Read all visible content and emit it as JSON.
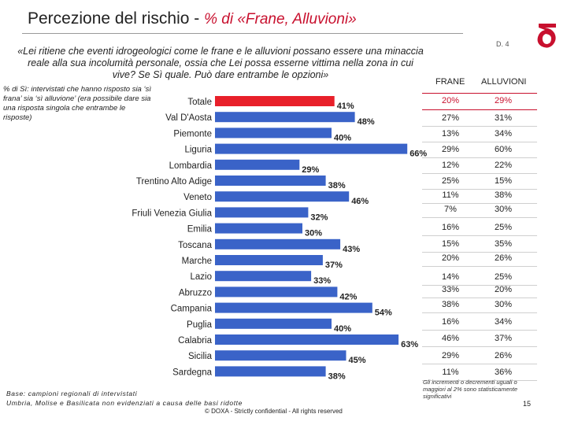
{
  "header": {
    "title": "Percezione del rischio - ",
    "subtitle": "% di «Frane, Alluvioni»",
    "question_code": "D. 4"
  },
  "question": "«Lei ritiene che eventi idrogeologici come le frane e le alluvioni possano essere una minaccia reale alla sua incolumità personale, ossia che Lei possa esserne vittima nella zona in cui vive? Se Sì quale. Può dare entrambe le opzioni»",
  "left_note": "% di Sì: intervistati che hanno risposto sia ‘sì frana’ sia ‘sì alluvione’ (era possibile dare sia una risposta singola che entrambe le risposte)",
  "table": {
    "headers": [
      "FRANE",
      "ALLUVIONI"
    ],
    "rows": [
      {
        "frane": "20%",
        "alluvioni": "29%"
      },
      {
        "frane": "27%",
        "alluvioni": "31%"
      },
      {
        "frane": "13%",
        "alluvioni": "34%"
      },
      {
        "frane": "29%",
        "alluvioni": "60%"
      },
      {
        "frane": "12%",
        "alluvioni": "22%"
      },
      {
        "frane": "25%",
        "alluvioni": "15%"
      },
      {
        "frane": "11%",
        "alluvioni": "38%"
      },
      {
        "frane": "7%",
        "alluvioni": "30%"
      },
      {
        "frane": "16%",
        "alluvioni": "25%"
      },
      {
        "frane": "15%",
        "alluvioni": "35%"
      },
      {
        "frane": "20%",
        "alluvioni": "26%"
      },
      {
        "frane": "14%",
        "alluvioni": "25%"
      },
      {
        "frane": "33%",
        "alluvioni": "20%"
      },
      {
        "frane": "38%",
        "alluvioni": "30%"
      },
      {
        "frane": "16%",
        "alluvioni": "34%"
      },
      {
        "frane": "46%",
        "alluvioni": "37%"
      },
      {
        "frane": "29%",
        "alluvioni": "26%"
      },
      {
        "frane": "11%",
        "alluvioni": "36%"
      }
    ]
  },
  "footnote_right": "Gli incrementi o decrementi uguali o maggiori al 2% sono statisticamente significativi",
  "base_note": "Base: campioni regionali di intervistati\nUmbria, Molise e Basilicata non evidenziati a causa delle basi ridotte",
  "copyright": "© DOXA - Strictly confidential - All rights reserved",
  "page_number": "15",
  "colors": {
    "bar": "#3a63c8",
    "bar_highlight": "#e8202a",
    "accent": "#c8102e"
  },
  "chart_data": {
    "type": "bar",
    "orientation": "horizontal",
    "categories": [
      "Totale",
      "Val D'Aosta",
      "Piemonte",
      "Liguria",
      "Lombardia",
      "Trentino Alto Adige",
      "Veneto",
      "Friuli Venezia Giulia",
      "Emilia",
      "Toscana",
      "Marche",
      "Lazio",
      "Abruzzo",
      "Campania",
      "Puglia",
      "Calabria",
      "Sicilia",
      "Sardegna"
    ],
    "values": [
      41,
      48,
      40,
      66,
      29,
      38,
      46,
      32,
      30,
      43,
      37,
      33,
      42,
      54,
      40,
      63,
      45,
      38
    ],
    "value_labels": [
      "41%",
      "48%",
      "40%",
      "66%",
      "29%",
      "38%",
      "46%",
      "32%",
      "30%",
      "43%",
      "37%",
      "33%",
      "42%",
      "54%",
      "40%",
      "63%",
      "45%",
      "38%"
    ],
    "highlight_index": 0,
    "xlim": [
      0,
      70
    ],
    "grid": false,
    "legend": "none"
  }
}
